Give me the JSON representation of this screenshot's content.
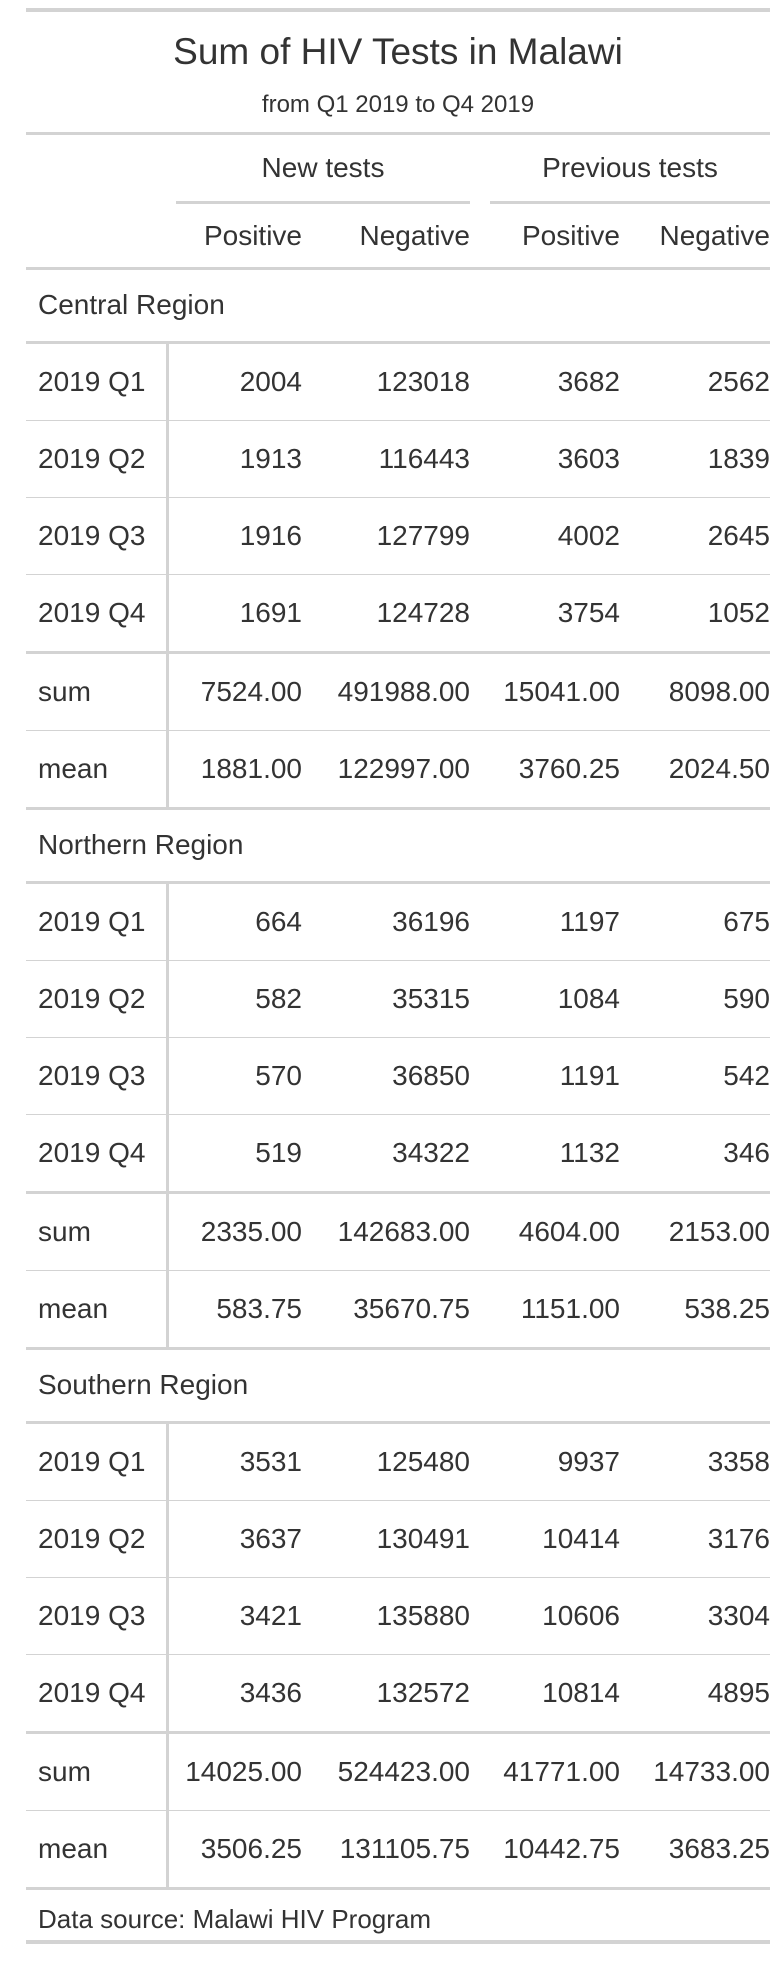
{
  "title": "Sum of HIV Tests in Malawi",
  "subtitle": "from Q1 2019 to Q4 2019",
  "spanners": [
    "New tests",
    "Previous tests"
  ],
  "columns": [
    "Positive",
    "Negative",
    "Positive",
    "Negative"
  ],
  "groups": [
    {
      "name": "Central Region",
      "rows": [
        {
          "label": "2019 Q1",
          "values": [
            "2004",
            "123018",
            "3682",
            "2562"
          ]
        },
        {
          "label": "2019 Q2",
          "values": [
            "1913",
            "116443",
            "3603",
            "1839"
          ]
        },
        {
          "label": "2019 Q3",
          "values": [
            "1916",
            "127799",
            "4002",
            "2645"
          ]
        },
        {
          "label": "2019 Q4",
          "values": [
            "1691",
            "124728",
            "3754",
            "1052"
          ]
        }
      ],
      "summary": [
        {
          "label": "sum",
          "values": [
            "7524.00",
            "491988.00",
            "15041.00",
            "8098.00"
          ]
        },
        {
          "label": "mean",
          "values": [
            "1881.00",
            "122997.00",
            "3760.25",
            "2024.50"
          ]
        }
      ]
    },
    {
      "name": "Northern Region",
      "rows": [
        {
          "label": "2019 Q1",
          "values": [
            "664",
            "36196",
            "1197",
            "675"
          ]
        },
        {
          "label": "2019 Q2",
          "values": [
            "582",
            "35315",
            "1084",
            "590"
          ]
        },
        {
          "label": "2019 Q3",
          "values": [
            "570",
            "36850",
            "1191",
            "542"
          ]
        },
        {
          "label": "2019 Q4",
          "values": [
            "519",
            "34322",
            "1132",
            "346"
          ]
        }
      ],
      "summary": [
        {
          "label": "sum",
          "values": [
            "2335.00",
            "142683.00",
            "4604.00",
            "2153.00"
          ]
        },
        {
          "label": "mean",
          "values": [
            "583.75",
            "35670.75",
            "1151.00",
            "538.25"
          ]
        }
      ]
    },
    {
      "name": "Southern Region",
      "rows": [
        {
          "label": "2019 Q1",
          "values": [
            "3531",
            "125480",
            "9937",
            "3358"
          ]
        },
        {
          "label": "2019 Q2",
          "values": [
            "3637",
            "130491",
            "10414",
            "3176"
          ]
        },
        {
          "label": "2019 Q3",
          "values": [
            "3421",
            "135880",
            "10606",
            "3304"
          ]
        },
        {
          "label": "2019 Q4",
          "values": [
            "3436",
            "132572",
            "10814",
            "4895"
          ]
        }
      ],
      "summary": [
        {
          "label": "sum",
          "values": [
            "14025.00",
            "524423.00",
            "41771.00",
            "14733.00"
          ]
        },
        {
          "label": "mean",
          "values": [
            "3506.25",
            "131105.75",
            "10442.75",
            "3683.25"
          ]
        }
      ]
    }
  ],
  "footer": "Data source: Malawi HIV Program"
}
